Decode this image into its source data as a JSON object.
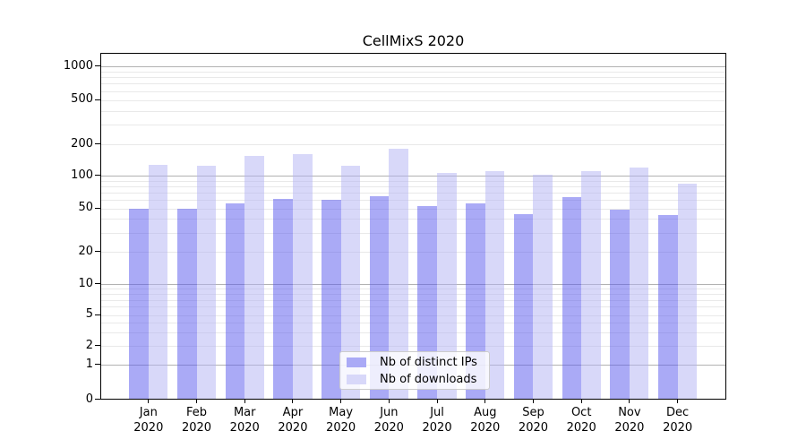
{
  "chart_data": {
    "type": "bar",
    "title": "CellMixS 2020",
    "xlabel": "",
    "ylabel": "",
    "categories": [
      "Jan",
      "Feb",
      "Mar",
      "Apr",
      "May",
      "Jun",
      "Jul",
      "Aug",
      "Sep",
      "Oct",
      "Nov",
      "Dec"
    ],
    "category_year": "2020",
    "series": [
      {
        "name": "Nb of distinct IPs",
        "color": "#aaaaf6",
        "fill_rgba": "rgba(86,86,237,0.5)",
        "values": [
          50,
          50,
          56,
          61,
          60,
          65,
          52,
          56,
          44,
          63,
          49,
          43
        ]
      },
      {
        "name": "Nb of downloads",
        "color": "#d8d8f9",
        "fill_rgba": "rgba(178,178,243,0.5)",
        "values": [
          127,
          124,
          154,
          161,
          125,
          182,
          106,
          111,
          103,
          111,
          119,
          84
        ]
      }
    ],
    "y_ticks": [
      0,
      1,
      2,
      5,
      10,
      20,
      50,
      100,
      200,
      500,
      1000
    ],
    "y_scale": "log-like",
    "ylim": [
      0,
      1000
    ],
    "grid": true,
    "legend_position": "lower center"
  },
  "colors": {
    "grid_minor": "#e9e9e9",
    "grid_major": "#b2b2b2",
    "axis": "#000000",
    "background": "#ffffff",
    "legend_border": "#cccccc"
  }
}
